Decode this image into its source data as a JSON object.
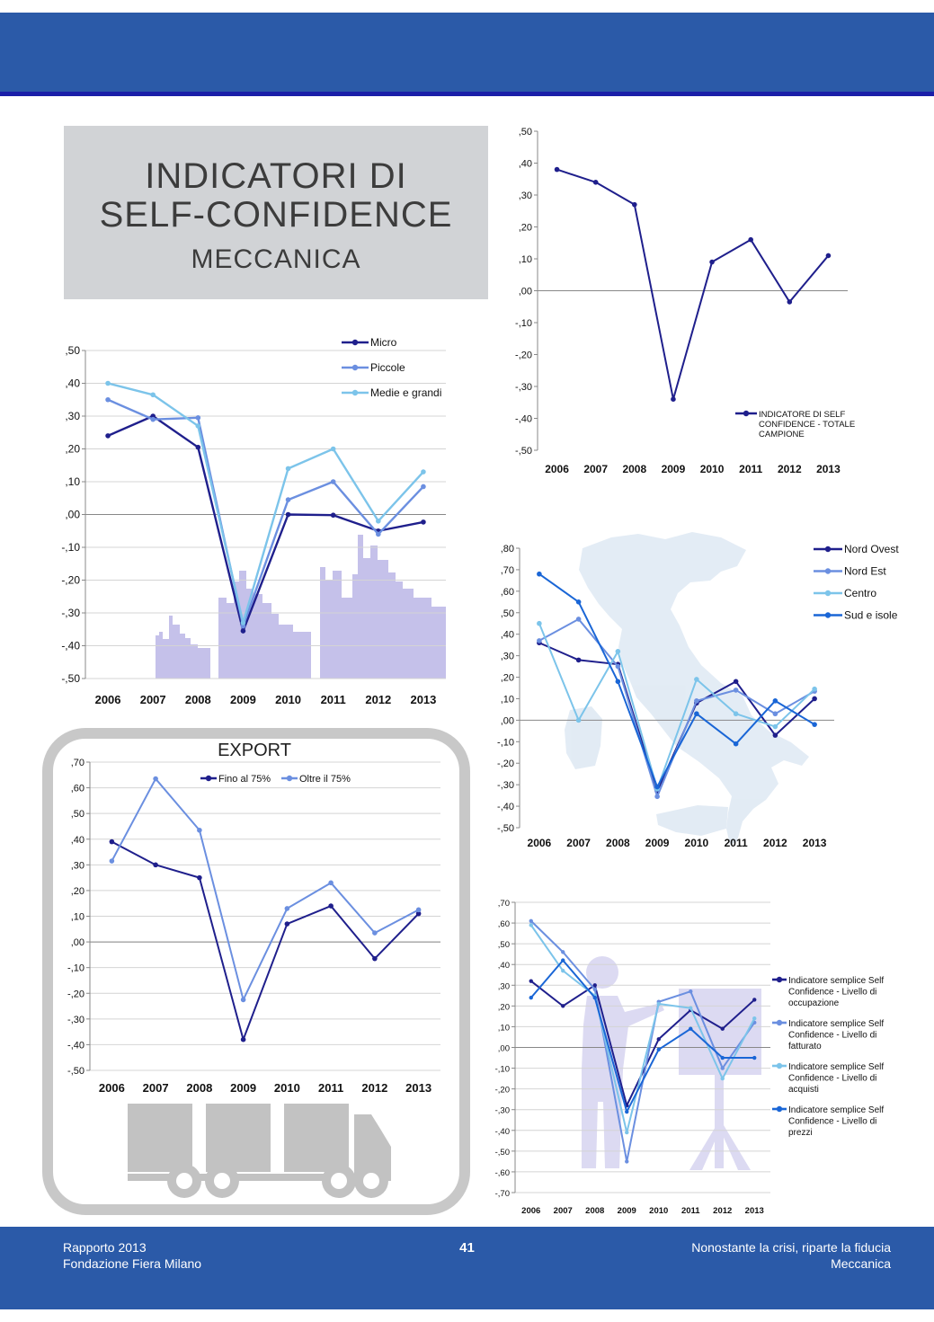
{
  "page": {
    "title": {
      "line1": "INDICATORI DI",
      "line2": "SELF-CONFIDENCE",
      "line3": "MECCANICA"
    },
    "footer": {
      "left_line1": "Rapporto 2013",
      "left_line2": "Fondazione Fiera Milano",
      "page_number": "41",
      "right_line1": "Nonostante la crisi, riparte la fiducia",
      "right_line2": "Meccanica"
    },
    "colors": {
      "header": "#2b5aa8",
      "accent_line": "#1a1fa8",
      "title_box": "#d1d3d6"
    }
  },
  "chart_data": [
    {
      "id": "total",
      "type": "line",
      "title": "",
      "categories": [
        "2006",
        "2007",
        "2008",
        "2009",
        "2010",
        "2011",
        "2012",
        "2013"
      ],
      "ylim": [
        -0.5,
        0.5
      ],
      "yticks": [
        ",50",
        ",40",
        ",30",
        ",20",
        ",10",
        ",00",
        "-,10",
        "-,20",
        "-,30",
        "-,40",
        "-,50"
      ],
      "legend": "bottom-right",
      "series": [
        {
          "name": "INDICATORE DI SELF CONFIDENCE - TOTALE CAMPIONE",
          "color": "#1f1f8c",
          "values": [
            0.38,
            0.34,
            0.27,
            -0.34,
            0.09,
            0.16,
            -0.035,
            0.11
          ]
        }
      ]
    },
    {
      "id": "size",
      "type": "line",
      "title": "",
      "categories": [
        "2006",
        "2007",
        "2008",
        "2009",
        "2010",
        "2011",
        "2012",
        "2013"
      ],
      "ylim": [
        -0.5,
        0.5
      ],
      "yticks": [
        ",50",
        ",40",
        ",30",
        ",20",
        ",10",
        ",00",
        "-,10",
        "-,20",
        "-,30",
        "-,40",
        "-,50"
      ],
      "legend": "top-right",
      "series": [
        {
          "name": "Micro",
          "color": "#1f1f8c",
          "values": [
            0.24,
            0.3,
            0.205,
            -0.355,
            0.0,
            -0.002,
            -0.05,
            -0.023
          ]
        },
        {
          "name": "Piccole",
          "color": "#6b8fe0",
          "values": [
            0.35,
            0.29,
            0.295,
            -0.34,
            0.045,
            0.1,
            -0.06,
            0.085
          ]
        },
        {
          "name": "Medie e grandi",
          "color": "#7cc4ea",
          "values": [
            0.4,
            0.365,
            0.27,
            -0.33,
            0.14,
            0.2,
            -0.02,
            0.13
          ]
        }
      ]
    },
    {
      "id": "area",
      "type": "line",
      "title": "",
      "categories": [
        "2006",
        "2007",
        "2008",
        "2009",
        "2010",
        "2011",
        "2012",
        "2013"
      ],
      "ylim": [
        -0.5,
        0.8
      ],
      "yticks": [
        ",80",
        ",70",
        ",60",
        ",50",
        ",40",
        ",30",
        ",20",
        ",10",
        ",00",
        "-,10",
        "-,20",
        "-,30",
        "-,40",
        "-,50"
      ],
      "legend": "top-right",
      "series": [
        {
          "name": "Nord Ovest",
          "color": "#1f1f8c",
          "values": [
            0.36,
            0.28,
            0.26,
            -0.33,
            0.08,
            0.18,
            -0.07,
            0.1
          ]
        },
        {
          "name": "Nord Est",
          "color": "#6b8fe0",
          "values": [
            0.37,
            0.47,
            0.25,
            -0.355,
            0.09,
            0.14,
            0.03,
            0.135
          ]
        },
        {
          "name": "Centro",
          "color": "#7cc4ea",
          "values": [
            0.45,
            0.0,
            0.32,
            -0.32,
            0.19,
            0.03,
            -0.03,
            0.145
          ]
        },
        {
          "name": "Sud e isole",
          "color": "#1a66d6",
          "values": [
            0.68,
            0.55,
            0.18,
            -0.31,
            0.03,
            -0.11,
            0.09,
            -0.02
          ]
        }
      ]
    },
    {
      "id": "export",
      "type": "line",
      "title": "EXPORT",
      "categories": [
        "2006",
        "2007",
        "2008",
        "2009",
        "2010",
        "2011",
        "2012",
        "2013"
      ],
      "ylim": [
        -0.5,
        0.7
      ],
      "yticks": [
        ",70",
        ",60",
        ",50",
        ",40",
        ",30",
        ",20",
        ",10",
        ",00",
        "-,10",
        "-,20",
        "-,30",
        "-,40",
        "-,50"
      ],
      "legend": "top",
      "series": [
        {
          "name": "Fino al 75%",
          "color": "#1f1f8c",
          "values": [
            0.39,
            0.3,
            0.25,
            -0.38,
            0.07,
            0.14,
            -0.065,
            0.11
          ]
        },
        {
          "name": "Oltre il 75%",
          "color": "#6b8fe0",
          "values": [
            0.315,
            0.635,
            0.435,
            -0.225,
            0.13,
            0.23,
            0.035,
            0.125
          ]
        }
      ]
    },
    {
      "id": "simple",
      "type": "line",
      "title": "",
      "categories": [
        "2006",
        "2007",
        "2008",
        "2009",
        "2010",
        "2011",
        "2012",
        "2013"
      ],
      "ylim": [
        -0.7,
        0.7
      ],
      "yticks": [
        ",70",
        ",60",
        ",50",
        ",40",
        ",30",
        ",20",
        ",10",
        ",00",
        "-,10",
        "-,20",
        "-,30",
        "-,40",
        "-,50",
        "-,60",
        "-,70"
      ],
      "legend": "right",
      "series": [
        {
          "name": "Indicatore semplice Self Confidence - Livello di occupazione",
          "color": "#1f1f8c",
          "values": [
            0.32,
            0.2,
            0.3,
            -0.28,
            0.04,
            0.18,
            0.09,
            0.23
          ]
        },
        {
          "name": "Indicatore semplice Self Confidence - Livello di fatturato",
          "color": "#6b8fe0",
          "values": [
            0.61,
            0.46,
            0.28,
            -0.55,
            0.22,
            0.27,
            -0.1,
            0.12
          ]
        },
        {
          "name": "Indicatore semplice Self Confidence - Livello di acquisti",
          "color": "#7cc4ea",
          "values": [
            0.59,
            0.37,
            0.25,
            -0.41,
            0.21,
            0.19,
            -0.15,
            0.14
          ]
        },
        {
          "name": "Indicatore semplice Self Confidence - Livello di prezzi",
          "color": "#1a66d6",
          "values": [
            0.24,
            0.42,
            0.24,
            -0.31,
            -0.01,
            0.09,
            -0.05,
            -0.05
          ]
        }
      ]
    }
  ]
}
